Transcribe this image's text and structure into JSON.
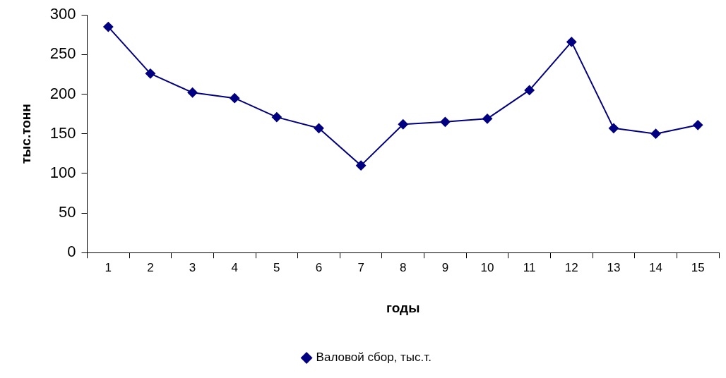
{
  "chart_data": {
    "type": "line",
    "xlabel": "годы",
    "ylabel": "тыс.тонн",
    "categories": [
      "1",
      "2",
      "3",
      "4",
      "5",
      "6",
      "7",
      "8",
      "9",
      "10",
      "11",
      "12",
      "13",
      "14",
      "15"
    ],
    "series": [
      {
        "name": "Валовой сбор, тыс.т.",
        "color": "#000080",
        "values": [
          285,
          226,
          202,
          195,
          171,
          157,
          110,
          162,
          165,
          169,
          205,
          266,
          157,
          150,
          161
        ]
      }
    ],
    "ylim": [
      0,
      300
    ],
    "yticks": [
      0,
      50,
      100,
      150,
      200,
      250,
      300
    ],
    "grid": false,
    "legend": "bottom",
    "marker": "diamond",
    "line_style": "solid"
  }
}
